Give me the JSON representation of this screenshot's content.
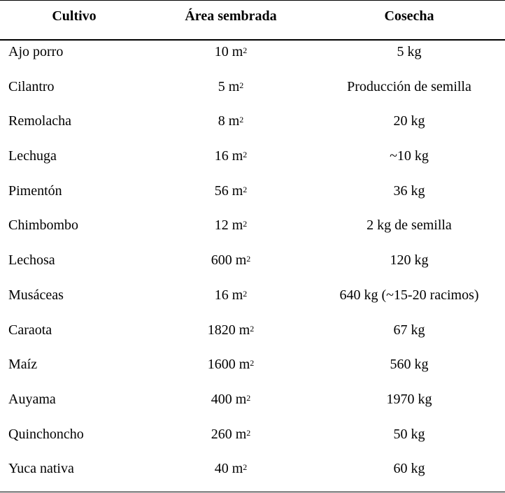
{
  "table": {
    "headers": {
      "crop": "Cultivo",
      "area": "Área sembrada",
      "harvest": "Cosecha"
    },
    "rows": [
      {
        "crop": "Ajo porro",
        "area": "10 m",
        "harvest": "5 kg"
      },
      {
        "crop": "Cilantro",
        "area": "5 m",
        "harvest": "Producción de semilla"
      },
      {
        "crop": "Remolacha",
        "area": "8 m",
        "harvest": "20 kg"
      },
      {
        "crop": "Lechuga",
        "area": "16 m",
        "harvest": "~10 kg"
      },
      {
        "crop": "Pimentón",
        "area": "56 m",
        "harvest": "36 kg"
      },
      {
        "crop": "Chimbombo",
        "area": "12 m",
        "harvest": "2 kg de semilla"
      },
      {
        "crop": "Lechosa",
        "area": "600 m",
        "harvest": "120 kg"
      },
      {
        "crop": "Musáceas",
        "area": "16 m",
        "harvest": "640 kg (~15-20 racimos)"
      },
      {
        "crop": "Caraota",
        "area": "1820 m",
        "harvest": "67 kg"
      },
      {
        "crop": "Maíz",
        "area": "1600 m",
        "harvest": "560 kg"
      },
      {
        "crop": "Auyama",
        "area": "400 m",
        "harvest": "1970 kg"
      },
      {
        "crop": "Quinchoncho",
        "area": "260 m",
        "harvest": "50 kg"
      },
      {
        "crop": "Yuca nativa",
        "area": "40 m",
        "harvest": "60 kg"
      }
    ],
    "area_unit_superscript": "2"
  }
}
